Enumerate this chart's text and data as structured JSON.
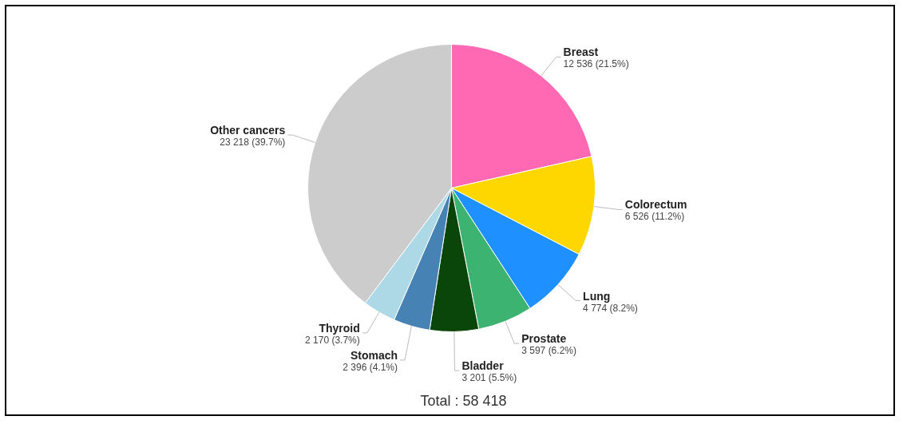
{
  "chart_data": {
    "type": "pie",
    "categories": [
      "Breast",
      "Colorectum",
      "Lung",
      "Prostate",
      "Bladder",
      "Stomach",
      "Thyroid",
      "Other cancers"
    ],
    "values": [
      12536,
      6526,
      4774,
      3597,
      3201,
      2396,
      2170,
      23218
    ],
    "colors": [
      "#ff69b4",
      "#ffd700",
      "#1e90ff",
      "#3cb371",
      "#0a460a",
      "#4682b4",
      "#add8e6",
      "#cccccc"
    ],
    "value_labels": [
      "12 536 (21.5%)",
      "6 526 (11.2%)",
      "4 774 (8.2%)",
      "3 597 (6.2%)",
      "3 201 (5.5%)",
      "2 396 (4.1%)",
      "2 170 (3.7%)",
      "23 218 (39.7%)"
    ],
    "annotations": [
      "Total : 58 418"
    ],
    "legend": false
  }
}
